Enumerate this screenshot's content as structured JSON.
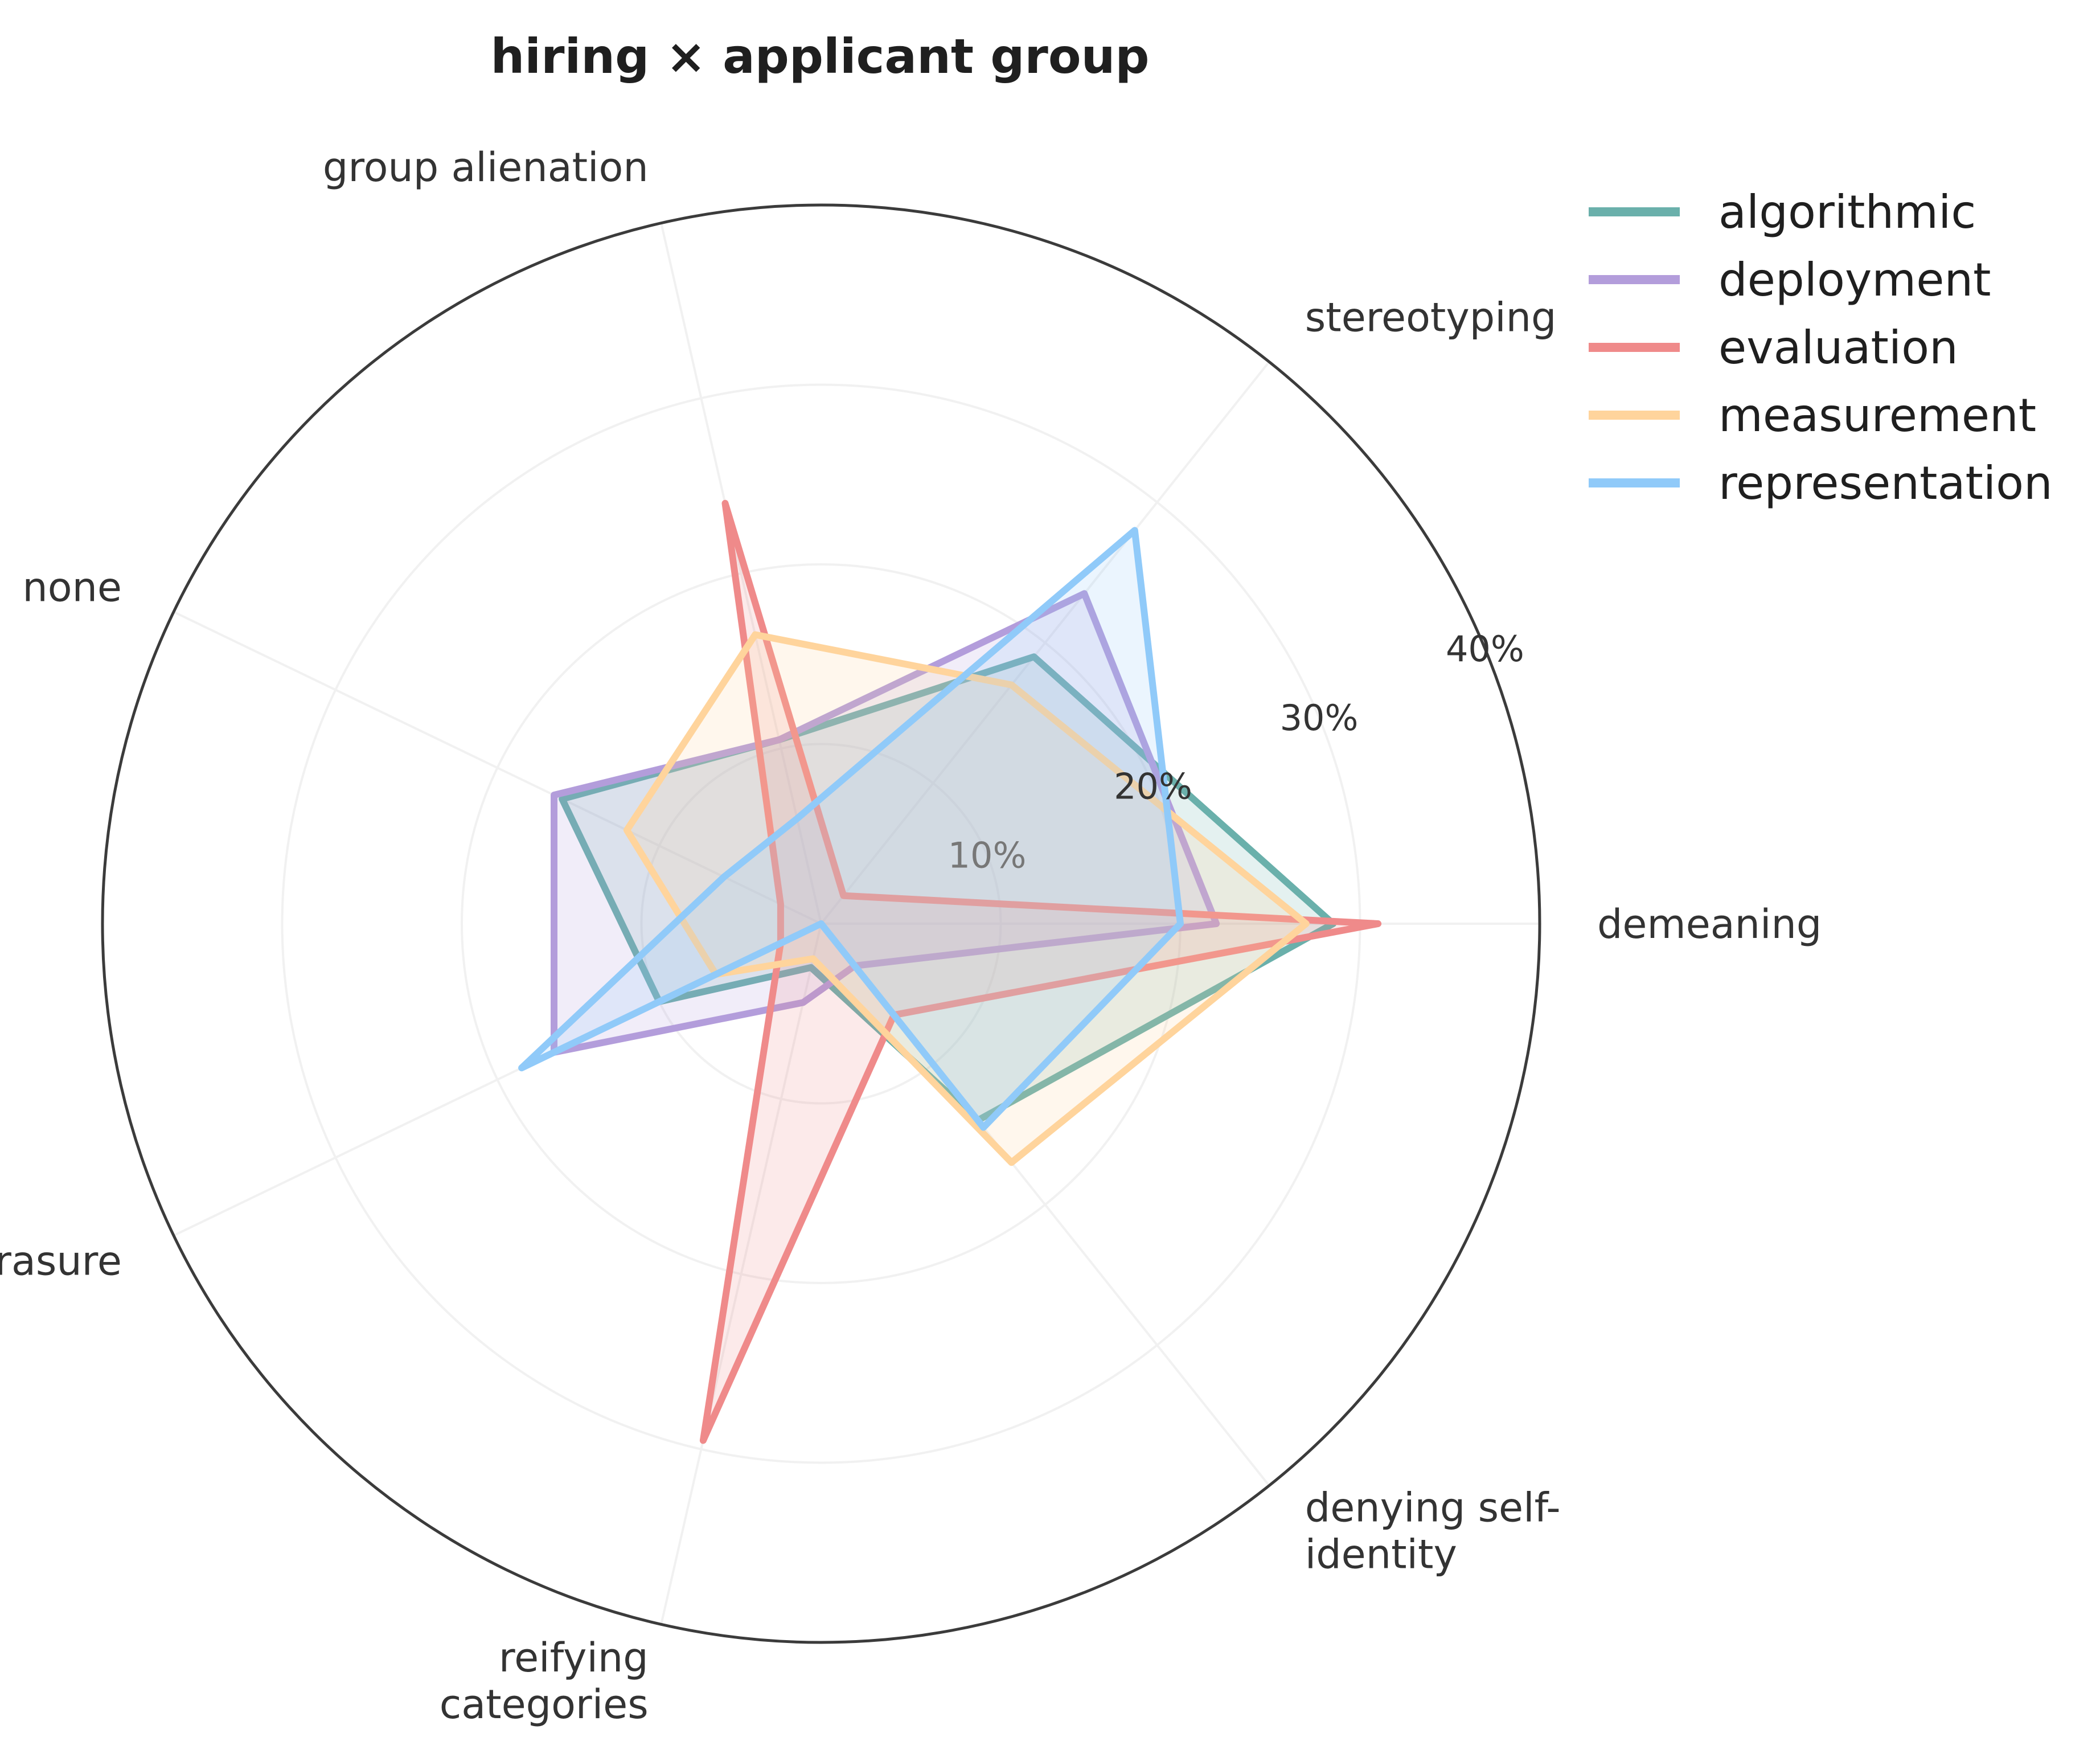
{
  "chart_data": {
    "type": "radar",
    "title": "hiring × applicant group",
    "axes": [
      "demeaning",
      "stereotyping",
      "group alienation",
      "none",
      "erasure",
      "reifying categories",
      "denying self-identity"
    ],
    "axis_label_lines": [
      [
        "demeaning"
      ],
      [
        "stereotyping"
      ],
      [
        "group alienation"
      ],
      [
        "none"
      ],
      [
        "erasure"
      ],
      [
        "reifying",
        "categories"
      ],
      [
        "denying self-",
        "identity"
      ]
    ],
    "rlim": [
      0,
      40
    ],
    "rticks": [
      10,
      20,
      30,
      40
    ],
    "rtick_labels": [
      "10%",
      "20%",
      "30%",
      "40%"
    ],
    "grid": true,
    "legend_position": "top-right",
    "series": [
      {
        "name": "algorithmic",
        "color": "#6ab0ab",
        "values": [
          28.5,
          19.0,
          10.5,
          16.0,
          10.0,
          2.5,
          14.0
        ]
      },
      {
        "name": "deployment",
        "color": "#b39ddb",
        "values": [
          22.0,
          23.5,
          10.5,
          16.5,
          16.5,
          4.5,
          3.0
        ]
      },
      {
        "name": "evaluation",
        "color": "#ef8a8a",
        "values": [
          31.0,
          2.0,
          24.0,
          2.5,
          2.5,
          29.5,
          6.5
        ]
      },
      {
        "name": "measurement",
        "color": "#ffd49c",
        "values": [
          27.0,
          17.0,
          16.5,
          12.0,
          6.5,
          2.0,
          17.0
        ]
      },
      {
        "name": "representation",
        "color": "#90caf9",
        "values": [
          20.0,
          28.0,
          6.0,
          6.0,
          18.5,
          0.0,
          14.5
        ]
      }
    ]
  }
}
